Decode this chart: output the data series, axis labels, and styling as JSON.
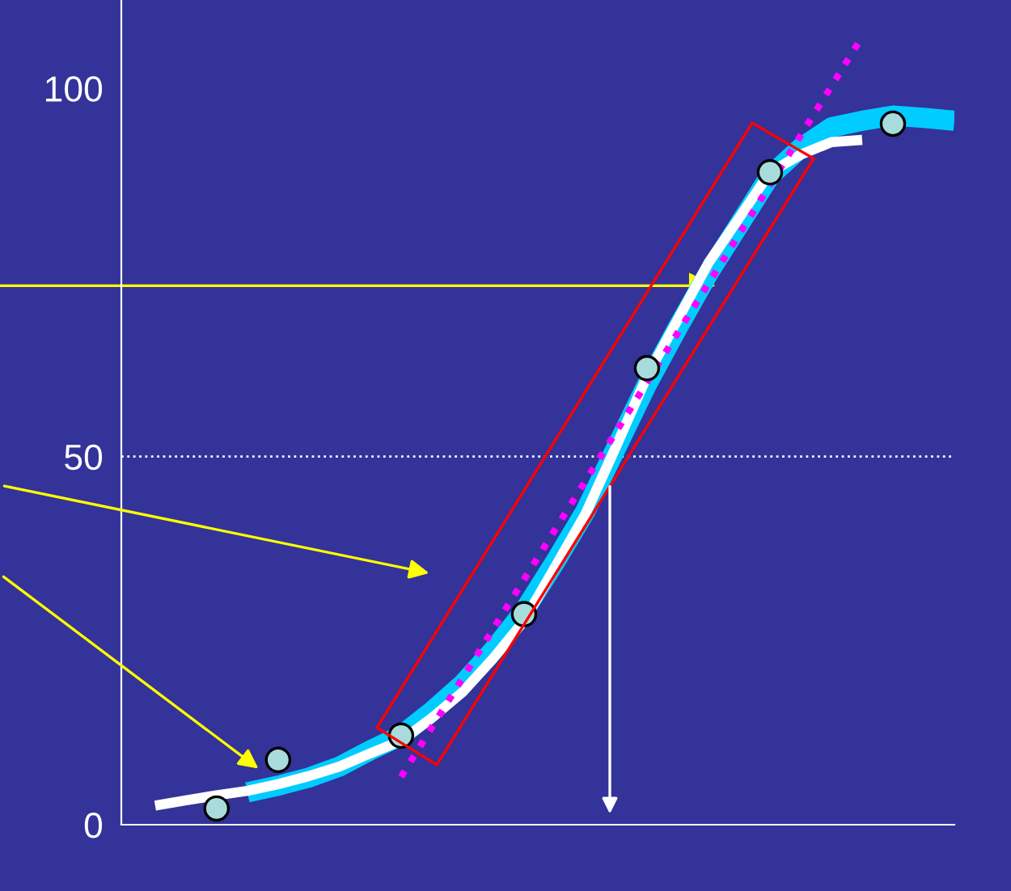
{
  "chart_data": {
    "type": "line",
    "categories": [
      null,
      null,
      null,
      null,
      null,
      null,
      null,
      null,
      null,
      null,
      null,
      null,
      null,
      null,
      null,
      null,
      null,
      null,
      null,
      null,
      null,
      null,
      null,
      null,
      null,
      null,
      null
    ],
    "ylim": [
      0,
      112
    ],
    "yticks": [
      0,
      50,
      100
    ],
    "grid": false,
    "legend": false,
    "series": [
      {
        "color": "#00ccff",
        "values": [
          null,
          null,
          null,
          4.4,
          5.3,
          6.4,
          7.9,
          10.1,
          12.1,
          15.4,
          19.1,
          23.7,
          29.0,
          35.6,
          42.6,
          51.2,
          59.8,
          67.5,
          74.9,
          81.5,
          88.1,
          91.9,
          94.7,
          95.6,
          96.3,
          96.0,
          95.6
        ]
      },
      {
        "color": "#ffffff",
        "values": [
          2.6,
          3.3,
          4.0,
          4.6,
          5.5,
          6.6,
          7.9,
          9.7,
          11.4,
          14.5,
          18.0,
          22.6,
          27.7,
          34.9,
          42.2,
          51.4,
          60.9,
          68.6,
          76.3,
          82.4,
          88.6,
          91.0,
          92.7,
          93.0,
          null,
          null,
          null
        ]
      },
      {
        "color": "#ff00ff",
        "line_style": "dotted",
        "values": [
          null,
          null,
          null,
          null,
          null,
          null,
          null,
          null,
          6.5,
          13.2,
          19.9,
          26.6,
          33.3,
          40.0,
          46.7,
          53.4,
          60.1,
          66.8,
          73.5,
          80.2,
          86.9,
          93.6,
          100.3,
          107.0,
          null,
          null,
          null
        ]
      },
      {
        "type": "scatter",
        "color": "#a8dcdc",
        "marker": "circle",
        "values": [
          null,
          null,
          2.2,
          null,
          8.8,
          null,
          null,
          null,
          12.1,
          null,
          null,
          null,
          28.6,
          null,
          null,
          null,
          62.0,
          null,
          null,
          null,
          88.6,
          null,
          null,
          null,
          95.2,
          null,
          null
        ]
      }
    ],
    "ref_lines": [
      {
        "axis": "y",
        "value": 50,
        "color": "#ffffff",
        "line_style": "dotted"
      },
      {
        "axis": "y",
        "value": 73.2,
        "color": "#ffff00"
      }
    ]
  }
}
